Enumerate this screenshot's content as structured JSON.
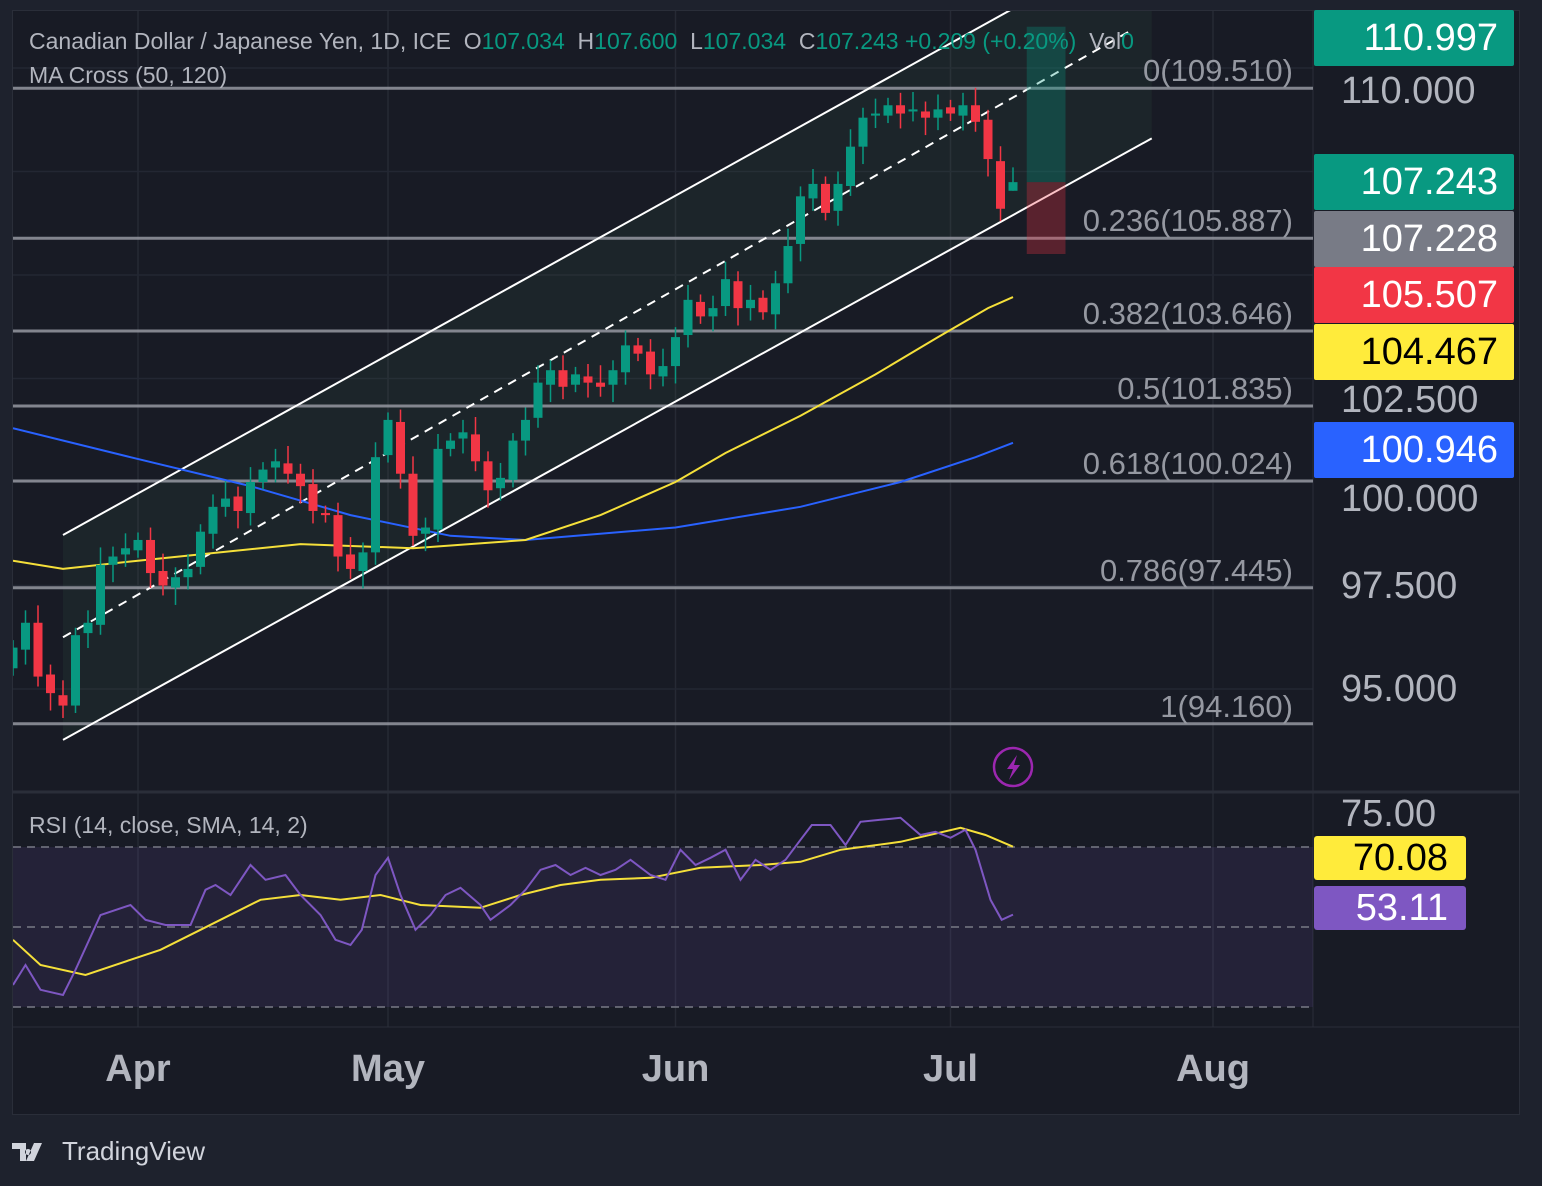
{
  "header": {
    "symbol": "Canadian Dollar / Japanese Yen, 1D, ICE",
    "o_label": "O",
    "o": "107.034",
    "h_label": "H",
    "h": "107.600",
    "l_label": "L",
    "l": "107.034",
    "c_label": "C",
    "c": "107.243",
    "change": "+0.209 (+0.20%)",
    "vol_label": "Vol",
    "vol": "0",
    "indicator": "MA Cross (50, 120)"
  },
  "rsi_header": "RSI (14, close, SMA, 14, 2)",
  "brand": "TradingView",
  "colors": {
    "up": "#089981",
    "down": "#f23645",
    "ma50": "#f5e03a",
    "ma120": "#2962ff",
    "rsi": "#7e57c2",
    "rsi_sma": "#f5e03a"
  },
  "price_axis": {
    "ticks": [
      "110.000",
      "102.500",
      "100.000",
      "97.500",
      "95.000"
    ],
    "rsi_ticks": [
      "75.00"
    ]
  },
  "price_tags": [
    {
      "value": "110.997",
      "bg": "#089981",
      "fg": "#ffffff",
      "price": 110.997
    },
    {
      "value": "107.243",
      "bg": "#089981",
      "fg": "#ffffff",
      "price": 107.243
    },
    {
      "value": "107.228",
      "bg": "#787b86",
      "fg": "#ffffff",
      "price": 107.228
    },
    {
      "value": "105.507",
      "bg": "#f23645",
      "fg": "#ffffff",
      "price": 105.507
    },
    {
      "value": "104.467",
      "bg": "#ffeb3b",
      "fg": "#000000",
      "price": 104.467
    },
    {
      "value": "100.946",
      "bg": "#2962ff",
      "fg": "#ffffff",
      "price": 100.946
    }
  ],
  "rsi_tags": [
    {
      "value": "70.08",
      "bg": "#ffeb3b",
      "fg": "#000000"
    },
    {
      "value": "53.11",
      "bg": "#7e57c2",
      "fg": "#ffffff"
    }
  ],
  "chart_data": {
    "type": "candlestick",
    "title": "Canadian Dollar / Japanese Yen, 1D, ICE",
    "ylim": [
      92.2,
      111.8
    ],
    "time_ticks": [
      {
        "label": "Apr",
        "bar": 10
      },
      {
        "label": "May",
        "bar": 30
      },
      {
        "label": "Jun",
        "bar": 53
      },
      {
        "label": "Jul",
        "bar": 75
      },
      {
        "label": "Aug",
        "bar": 96
      }
    ],
    "first_open": 95.5,
    "closes": [
      96.0,
      96.6,
      95.3,
      94.9,
      94.6,
      96.3,
      96.6,
      98.0,
      98.2,
      98.4,
      98.6,
      97.8,
      97.5,
      97.7,
      97.9,
      98.8,
      99.4,
      99.6,
      99.3,
      100.0,
      100.3,
      100.5,
      100.2,
      99.9,
      99.3,
      99.2,
      98.2,
      97.9,
      98.3,
      100.6,
      101.5,
      100.2,
      98.7,
      98.9,
      100.8,
      101.0,
      101.2,
      100.5,
      99.8,
      100.1,
      101.0,
      101.5,
      102.4,
      102.7,
      102.3,
      102.6,
      102.4,
      102.3,
      102.7,
      103.3,
      103.1,
      102.6,
      102.8,
      103.5,
      104.4,
      104.0,
      104.2,
      104.9,
      104.2,
      104.4,
      104.1,
      104.8,
      105.7,
      106.9,
      107.2,
      106.5,
      107.2,
      108.1,
      108.8,
      108.9,
      109.1,
      108.9,
      109.0,
      108.8,
      109.0,
      108.9,
      109.1,
      108.7,
      107.8,
      106.6,
      107.243
    ],
    "last_bar": {
      "open": 107.034,
      "high": 107.6,
      "low": 107.034,
      "close": 107.243
    },
    "ma50": [
      [
        0,
        98.1
      ],
      [
        4,
        97.9
      ],
      [
        10,
        98.1
      ],
      [
        23,
        98.5
      ],
      [
        32,
        98.4
      ],
      [
        41,
        98.6
      ],
      [
        47,
        99.2
      ],
      [
        53,
        100.0
      ],
      [
        57,
        100.7
      ],
      [
        63,
        101.6
      ],
      [
        69,
        102.6
      ],
      [
        74,
        103.5
      ],
      [
        78,
        104.2
      ],
      [
        80,
        104.467
      ]
    ],
    "ma120": [
      [
        0,
        101.3
      ],
      [
        9.4,
        100.6
      ],
      [
        19,
        99.9
      ],
      [
        27,
        99.2
      ],
      [
        35,
        98.7
      ],
      [
        41,
        98.6
      ],
      [
        53,
        98.9
      ],
      [
        63,
        99.4
      ],
      [
        71,
        100.0
      ],
      [
        77,
        100.6
      ],
      [
        80,
        100.946
      ]
    ],
    "channel": {
      "upper": [
        [
          4,
          98.72
        ],
        [
          79.8,
          111.4
        ]
      ],
      "lower": [
        [
          4,
          93.77
        ],
        [
          91.1,
          108.3
        ]
      ],
      "mid": [
        [
          4,
          96.25
        ],
        [
          89.4,
          110.9
        ]
      ]
    },
    "fib_levels": [
      {
        "label": "0(109.510)",
        "price": 109.51
      },
      {
        "label": "0.236(105.887)",
        "price": 105.887
      },
      {
        "label": "0.382(103.646)",
        "price": 103.646
      },
      {
        "label": "0.5(101.835)",
        "price": 101.835
      },
      {
        "label": "0.618(100.024)",
        "price": 100.024
      },
      {
        "label": "0.786(97.445)",
        "price": 97.445
      },
      {
        "label": "1(94.160)",
        "price": 94.16
      }
    ],
    "position": {
      "entry": 107.243,
      "target": 110.997,
      "stop": 105.507,
      "bar_start": 81.1,
      "bar_end": 84.2
    },
    "rsi": {
      "ylim": [
        18,
        82
      ],
      "levels": [
        70,
        50,
        30
      ],
      "values": [
        [
          0,
          35.5
        ],
        [
          1,
          40.5
        ],
        [
          2.2,
          34.3
        ],
        [
          4,
          33
        ],
        [
          5,
          39.3
        ],
        [
          7,
          53
        ],
        [
          9.4,
          55.5
        ],
        [
          10.6,
          51.8
        ],
        [
          12.2,
          50.5
        ],
        [
          14.2,
          50.5
        ],
        [
          15.4,
          59.3
        ],
        [
          16.2,
          60.5
        ],
        [
          17.4,
          58
        ],
        [
          19,
          65.5
        ],
        [
          20.2,
          61.8
        ],
        [
          21.8,
          63
        ],
        [
          23,
          58
        ],
        [
          24.6,
          53
        ],
        [
          25.8,
          46.8
        ],
        [
          27,
          45.5
        ],
        [
          27.9,
          49.3
        ],
        [
          29,
          63
        ],
        [
          30,
          67.3
        ],
        [
          31,
          58
        ],
        [
          32.2,
          49.3
        ],
        [
          33.4,
          53
        ],
        [
          34.6,
          58
        ],
        [
          35.8,
          59.8
        ],
        [
          37.4,
          55.5
        ],
        [
          38.2,
          51.8
        ],
        [
          39.8,
          55.5
        ],
        [
          41,
          59.3
        ],
        [
          42.2,
          64.3
        ],
        [
          43.4,
          65.5
        ],
        [
          44.6,
          63
        ],
        [
          45.8,
          64.8
        ],
        [
          47,
          63
        ],
        [
          48.2,
          64.3
        ],
        [
          49.4,
          66.8
        ],
        [
          51,
          63
        ],
        [
          52.2,
          61.8
        ],
        [
          53.4,
          69.3
        ],
        [
          54.6,
          65.5
        ],
        [
          55.8,
          67.3
        ],
        [
          57,
          69.3
        ],
        [
          58.2,
          61.8
        ],
        [
          59.4,
          66.8
        ],
        [
          60.6,
          64.3
        ],
        [
          61.8,
          66.8
        ],
        [
          63,
          71.8
        ],
        [
          63.9,
          75.5
        ],
        [
          65.4,
          75.5
        ],
        [
          66.6,
          70.5
        ],
        [
          67.8,
          76.3
        ],
        [
          69.4,
          76.8
        ],
        [
          71,
          77.3
        ],
        [
          72.6,
          73
        ],
        [
          73.8,
          73.8
        ],
        [
          75,
          72.3
        ],
        [
          76.2,
          74.3
        ],
        [
          77,
          69.3
        ],
        [
          78.2,
          56.8
        ],
        [
          79.1,
          51.8
        ],
        [
          80,
          53.11
        ]
      ],
      "sma": [
        [
          0,
          46.8
        ],
        [
          2.2,
          40.5
        ],
        [
          5.8,
          38
        ],
        [
          9.4,
          41.8
        ],
        [
          11.8,
          44.3
        ],
        [
          15,
          49.3
        ],
        [
          19.8,
          56.8
        ],
        [
          23,
          58
        ],
        [
          26.2,
          56.8
        ],
        [
          29.4,
          58
        ],
        [
          32.6,
          55.5
        ],
        [
          37.4,
          54.8
        ],
        [
          40.6,
          58
        ],
        [
          43.8,
          60.5
        ],
        [
          47,
          61.8
        ],
        [
          51,
          62.3
        ],
        [
          55,
          64.8
        ],
        [
          59.8,
          65.5
        ],
        [
          63,
          66.3
        ],
        [
          66.2,
          69.3
        ],
        [
          71,
          71.3
        ],
        [
          75.8,
          74.8
        ],
        [
          77.8,
          73
        ],
        [
          80,
          70.08
        ]
      ]
    }
  }
}
